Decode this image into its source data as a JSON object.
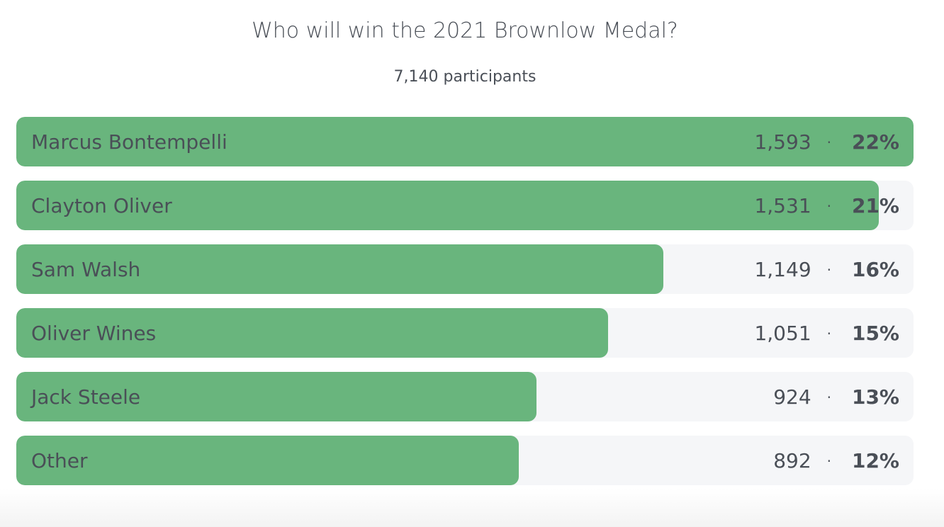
{
  "poll": {
    "title": "Who will win the 2021 Brownlow Medal?",
    "participants": "7,140 participants",
    "separator": "·",
    "fill_color": "#69b57d",
    "options": [
      {
        "name": "Marcus Bontempelli",
        "votes": "1,593",
        "count": 1593,
        "percent": "22%"
      },
      {
        "name": "Clayton Oliver",
        "votes": "1,531",
        "count": 1531,
        "percent": "21%"
      },
      {
        "name": "Sam Walsh",
        "votes": "1,149",
        "count": 1149,
        "percent": "16%"
      },
      {
        "name": "Oliver Wines",
        "votes": "1,051",
        "count": 1051,
        "percent": "15%"
      },
      {
        "name": "Jack Steele",
        "votes": "924",
        "count": 924,
        "percent": "13%"
      },
      {
        "name": "Other",
        "votes": "892",
        "count": 892,
        "percent": "12%"
      }
    ]
  }
}
